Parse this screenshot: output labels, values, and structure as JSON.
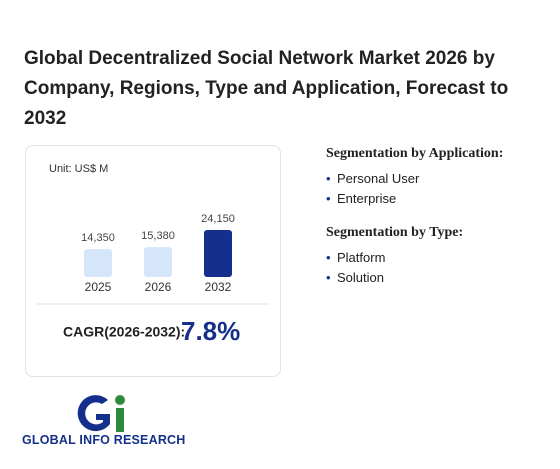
{
  "title": "Global Decentralized Social Network Market 2026 by Company, Regions, Type and Application, Forecast to 2032",
  "chart_data": {
    "type": "bar",
    "unit": "Unit: US$ M",
    "categories": [
      "2025",
      "2026",
      "2032"
    ],
    "values": [
      14350,
      15380,
      24150
    ],
    "value_labels": [
      "14,350",
      "15,380",
      "24,150"
    ],
    "colors": [
      "#d5e6fb",
      "#d5e6fb",
      "#14308c"
    ]
  },
  "cagr": {
    "label": "CAGR(2026-2032):",
    "value": "7.8%"
  },
  "segments": [
    {
      "heading": "Segmentation by Application:",
      "items": [
        "Personal User",
        "Enterprise"
      ]
    },
    {
      "heading": "Segmentation by Type:",
      "items": [
        "Platform",
        "Solution"
      ]
    }
  ],
  "logo": {
    "text": "GLOBAL INFO RESEARCH"
  }
}
